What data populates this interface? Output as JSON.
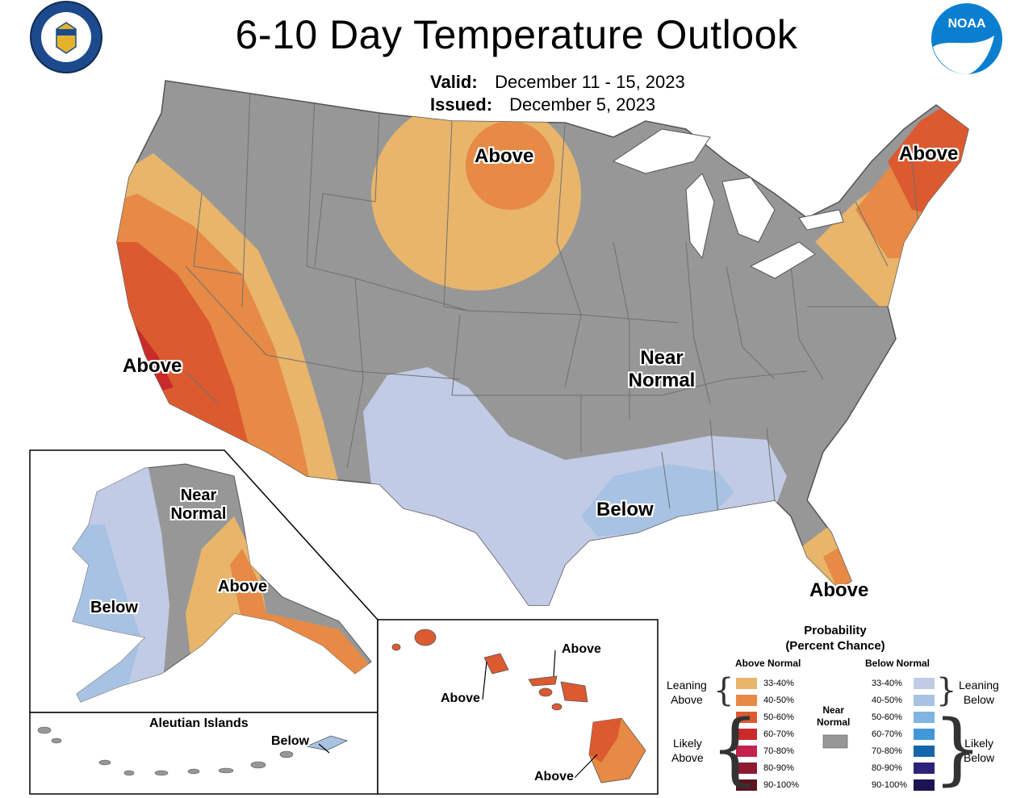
{
  "title": "6-10 Day Temperature Outlook",
  "valid": {
    "label": "Valid:",
    "value": "December 11 - 15, 2023"
  },
  "issued": {
    "label": "Issued:",
    "value": "December 5, 2023"
  },
  "logos": {
    "left": "department-of-commerce-seal",
    "right": "noaa-logo",
    "noaa_text": "NOAA"
  },
  "colors": {
    "ocean": "#ffffff",
    "land_near_normal": "#979797",
    "state_border": "#6f6f6f",
    "above_33_40": "#e8b56b",
    "above_40_50": "#e68a45",
    "above_50_60": "#dc5a30",
    "above_60_70": "#c82b2a",
    "above_70_80": "#c2224c",
    "above_80_90": "#8e1a32",
    "above_90_100": "#5a1620",
    "below_33_40": "#c2cbe5",
    "below_40_50": "#a7c2e3",
    "below_50_60": "#7fb4e3",
    "below_60_70": "#4197d7",
    "below_70_80": "#1565ab",
    "below_80_90": "#2b2379",
    "below_90_100": "#1a1552"
  },
  "map_labels": {
    "west_coast": "Above",
    "northern_plains": "Above",
    "new_england": "Above",
    "florida": "Above",
    "central": "Near\nNormal",
    "gulf": "Below",
    "alaska_near_normal": "Near\nNormal",
    "alaska_above": "Above",
    "alaska_below": "Below",
    "aleutian_below": "Below",
    "hawaii_above_1": "Above",
    "hawaii_above_2": "Above",
    "hawaii_above_3": "Above"
  },
  "aleutian_title": "Aleutian Islands",
  "legend": {
    "title": "Probability\n(Percent Chance)",
    "above_header": "Above Normal",
    "below_header": "Below Normal",
    "near_normal": "Near\nNormal",
    "leaning_above": "Leaning\nAbove",
    "likely_above": "Likely\nAbove",
    "leaning_below": "Leaning\nBelow",
    "likely_below": "Likely\nBelow",
    "above_rows": [
      {
        "label": "33-40%",
        "color": "#e8b56b"
      },
      {
        "label": "40-50%",
        "color": "#e68a45"
      },
      {
        "label": "50-60%",
        "color": "#dc5a30"
      },
      {
        "label": "60-70%",
        "color": "#c82b2a"
      },
      {
        "label": "70-80%",
        "color": "#c2224c"
      },
      {
        "label": "80-90%",
        "color": "#8e1a32"
      },
      {
        "label": "90-100%",
        "color": "#5a1620"
      }
    ],
    "below_rows": [
      {
        "label": "33-40%",
        "color": "#c2cbe5"
      },
      {
        "label": "40-50%",
        "color": "#a7c2e3"
      },
      {
        "label": "50-60%",
        "color": "#7fb4e3"
      },
      {
        "label": "60-70%",
        "color": "#4197d7"
      },
      {
        "label": "70-80%",
        "color": "#1565ab"
      },
      {
        "label": "80-90%",
        "color": "#2b2379"
      },
      {
        "label": "90-100%",
        "color": "#1a1552"
      }
    ]
  }
}
